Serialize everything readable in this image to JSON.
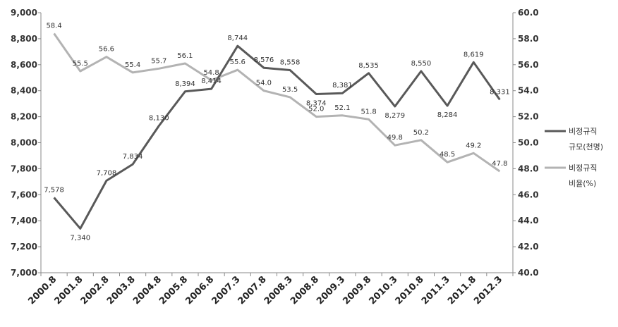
{
  "chart_data": {
    "type": "line",
    "categories": [
      "2000.8",
      "2001.8",
      "2002.8",
      "2003.8",
      "2004.8",
      "2005.8",
      "2006.8",
      "2007.3",
      "2007.8",
      "2008.3",
      "2008.8",
      "2009.3",
      "2009.8",
      "2010.3",
      "2010.8",
      "2011.3",
      "2011.8",
      "2012.3"
    ],
    "y_left": {
      "min": 7000,
      "max": 9000,
      "step": 200,
      "ticks": [
        "7,000",
        "7,200",
        "7,400",
        "7,600",
        "7,800",
        "8,000",
        "8,200",
        "8,400",
        "8,600",
        "8,800",
        "9,000"
      ]
    },
    "y_right": {
      "min": 40,
      "max": 60,
      "step": 2,
      "ticks": [
        "40.0",
        "42.0",
        "44.0",
        "46.0",
        "48.0",
        "50.0",
        "52.0",
        "54.0",
        "56.0",
        "58.0",
        "60.0"
      ]
    },
    "grid": false,
    "legend_position": "right",
    "series": [
      {
        "name_line1": "비정규직",
        "name_line2": "규모(천명)",
        "axis": "left",
        "color": "#595959",
        "values": [
          7578,
          7340,
          7708,
          7834,
          8130,
          8394,
          8414,
          8744,
          8576,
          8558,
          8374,
          8381,
          8535,
          8279,
          8550,
          8284,
          8619,
          8331
        ],
        "labels": [
          "7,578",
          "7,340",
          "7,708",
          "7,834",
          "8,130",
          "8,394",
          "8,414",
          "8,744",
          "8,576",
          "8,558",
          "8,374",
          "8,381",
          "8,535",
          "8,279",
          "8,550",
          "8,284",
          "8,619",
          "8,331"
        ]
      },
      {
        "name_line1": "비정규직",
        "name_line2": "비율(%)",
        "axis": "right",
        "color": "#b3b3b3",
        "values": [
          58.4,
          55.5,
          56.6,
          55.4,
          55.7,
          56.1,
          54.8,
          55.6,
          54.0,
          53.5,
          52.0,
          52.1,
          51.8,
          49.8,
          50.2,
          48.5,
          49.2,
          47.8
        ],
        "labels": [
          "58.4",
          "55.5",
          "56.6",
          "55.4",
          "55.7",
          "56.1",
          "54.8",
          "55.6",
          "54.0",
          "53.5",
          "52.0",
          "52.1",
          "51.8",
          "49.8",
          "50.2",
          "48.5",
          "49.2",
          "47.8"
        ]
      }
    ]
  }
}
